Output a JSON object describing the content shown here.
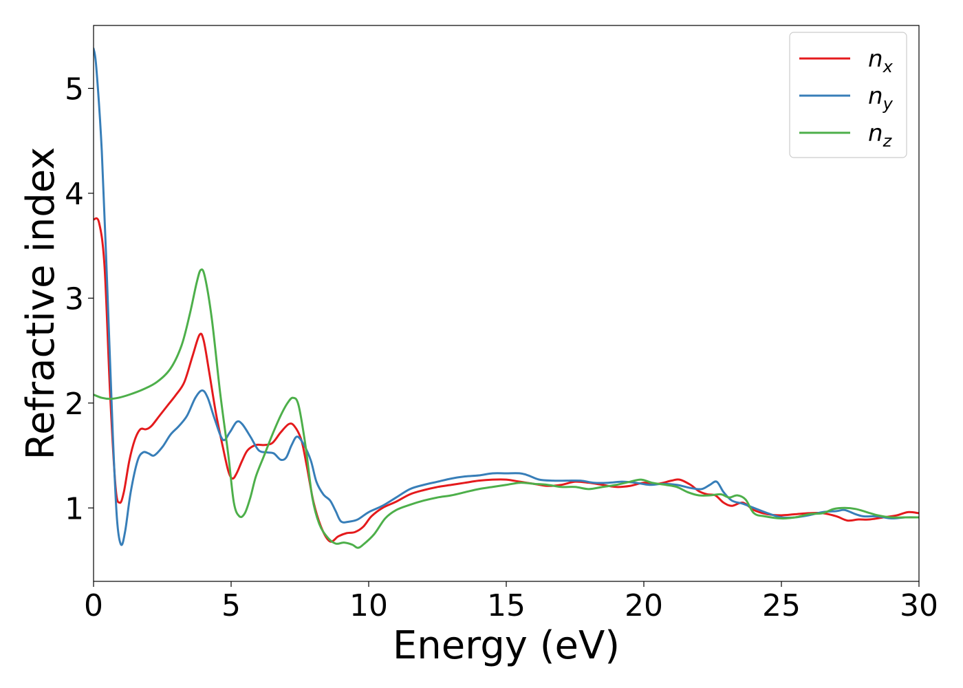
{
  "chart_data": {
    "type": "line",
    "title": "",
    "xlabel": "Energy (eV)",
    "ylabel": "Refractive index",
    "xlim": [
      0,
      30
    ],
    "ylim": [
      0.3,
      5.6
    ],
    "xticks": [
      0,
      5,
      10,
      15,
      20,
      25,
      30
    ],
    "yticks": [
      1,
      2,
      3,
      4,
      5
    ],
    "grid": false,
    "legend": "top-right",
    "series": [
      {
        "name": "n_x",
        "label_base": "n",
        "label_sub": "x",
        "color": "#e41a1c",
        "points": [
          [
            0,
            3.75
          ],
          [
            0.2,
            3.72
          ],
          [
            0.4,
            3.3
          ],
          [
            0.6,
            2.1
          ],
          [
            0.8,
            1.2
          ],
          [
            0.95,
            1.05
          ],
          [
            1.1,
            1.15
          ],
          [
            1.3,
            1.45
          ],
          [
            1.5,
            1.65
          ],
          [
            1.7,
            1.75
          ],
          [
            1.9,
            1.75
          ],
          [
            2.1,
            1.78
          ],
          [
            2.4,
            1.88
          ],
          [
            2.7,
            1.98
          ],
          [
            3.0,
            2.08
          ],
          [
            3.3,
            2.2
          ],
          [
            3.6,
            2.45
          ],
          [
            3.85,
            2.65
          ],
          [
            4.0,
            2.6
          ],
          [
            4.2,
            2.3
          ],
          [
            4.45,
            1.9
          ],
          [
            4.7,
            1.58
          ],
          [
            4.9,
            1.35
          ],
          [
            5.05,
            1.28
          ],
          [
            5.2,
            1.33
          ],
          [
            5.4,
            1.45
          ],
          [
            5.6,
            1.55
          ],
          [
            5.9,
            1.6
          ],
          [
            6.2,
            1.6
          ],
          [
            6.5,
            1.62
          ],
          [
            6.8,
            1.72
          ],
          [
            7.1,
            1.8
          ],
          [
            7.3,
            1.78
          ],
          [
            7.55,
            1.65
          ],
          [
            7.75,
            1.4
          ],
          [
            8.0,
            1.05
          ],
          [
            8.3,
            0.8
          ],
          [
            8.6,
            0.68
          ],
          [
            8.9,
            0.73
          ],
          [
            9.2,
            0.76
          ],
          [
            9.5,
            0.77
          ],
          [
            9.8,
            0.82
          ],
          [
            10.1,
            0.92
          ],
          [
            10.5,
            1.0
          ],
          [
            11.0,
            1.06
          ],
          [
            11.5,
            1.13
          ],
          [
            12.0,
            1.17
          ],
          [
            12.5,
            1.2
          ],
          [
            13.0,
            1.22
          ],
          [
            13.5,
            1.24
          ],
          [
            14.0,
            1.26
          ],
          [
            14.5,
            1.27
          ],
          [
            15.0,
            1.27
          ],
          [
            15.5,
            1.25
          ],
          [
            16.0,
            1.23
          ],
          [
            16.5,
            1.21
          ],
          [
            17.0,
            1.22
          ],
          [
            17.5,
            1.25
          ],
          [
            18.0,
            1.24
          ],
          [
            18.5,
            1.22
          ],
          [
            19.0,
            1.2
          ],
          [
            19.5,
            1.21
          ],
          [
            20.0,
            1.24
          ],
          [
            20.5,
            1.23
          ],
          [
            21.0,
            1.26
          ],
          [
            21.3,
            1.27
          ],
          [
            21.7,
            1.22
          ],
          [
            22.0,
            1.16
          ],
          [
            22.3,
            1.13
          ],
          [
            22.6,
            1.12
          ],
          [
            22.9,
            1.05
          ],
          [
            23.2,
            1.02
          ],
          [
            23.6,
            1.05
          ],
          [
            24.0,
            0.98
          ],
          [
            24.5,
            0.94
          ],
          [
            25.0,
            0.93
          ],
          [
            25.5,
            0.94
          ],
          [
            26.0,
            0.95
          ],
          [
            26.5,
            0.95
          ],
          [
            27.0,
            0.92
          ],
          [
            27.4,
            0.88
          ],
          [
            27.8,
            0.89
          ],
          [
            28.2,
            0.89
          ],
          [
            28.7,
            0.91
          ],
          [
            29.2,
            0.93
          ],
          [
            29.6,
            0.96
          ],
          [
            30.0,
            0.95
          ]
        ]
      },
      {
        "name": "n_y",
        "label_base": "n",
        "label_sub": "y",
        "color": "#377eb8",
        "points": [
          [
            0,
            5.38
          ],
          [
            0.1,
            5.2
          ],
          [
            0.3,
            4.4
          ],
          [
            0.5,
            3.1
          ],
          [
            0.7,
            1.7
          ],
          [
            0.85,
            0.9
          ],
          [
            1.0,
            0.65
          ],
          [
            1.15,
            0.78
          ],
          [
            1.35,
            1.15
          ],
          [
            1.6,
            1.45
          ],
          [
            1.8,
            1.53
          ],
          [
            2.0,
            1.52
          ],
          [
            2.2,
            1.5
          ],
          [
            2.5,
            1.58
          ],
          [
            2.8,
            1.7
          ],
          [
            3.1,
            1.78
          ],
          [
            3.4,
            1.88
          ],
          [
            3.7,
            2.05
          ],
          [
            3.95,
            2.12
          ],
          [
            4.15,
            2.05
          ],
          [
            4.4,
            1.85
          ],
          [
            4.7,
            1.65
          ],
          [
            4.95,
            1.72
          ],
          [
            5.2,
            1.82
          ],
          [
            5.4,
            1.8
          ],
          [
            5.7,
            1.68
          ],
          [
            6.0,
            1.55
          ],
          [
            6.3,
            1.53
          ],
          [
            6.55,
            1.52
          ],
          [
            6.8,
            1.46
          ],
          [
            7.0,
            1.48
          ],
          [
            7.2,
            1.6
          ],
          [
            7.4,
            1.68
          ],
          [
            7.65,
            1.6
          ],
          [
            7.9,
            1.45
          ],
          [
            8.1,
            1.25
          ],
          [
            8.35,
            1.13
          ],
          [
            8.6,
            1.07
          ],
          [
            8.8,
            0.97
          ],
          [
            9.0,
            0.87
          ],
          [
            9.3,
            0.87
          ],
          [
            9.6,
            0.89
          ],
          [
            10.0,
            0.96
          ],
          [
            10.5,
            1.02
          ],
          [
            11.0,
            1.1
          ],
          [
            11.5,
            1.18
          ],
          [
            12.0,
            1.22
          ],
          [
            12.5,
            1.25
          ],
          [
            13.0,
            1.28
          ],
          [
            13.5,
            1.3
          ],
          [
            14.0,
            1.31
          ],
          [
            14.5,
            1.33
          ],
          [
            15.0,
            1.33
          ],
          [
            15.5,
            1.33
          ],
          [
            15.8,
            1.31
          ],
          [
            16.2,
            1.27
          ],
          [
            16.7,
            1.26
          ],
          [
            17.2,
            1.26
          ],
          [
            17.7,
            1.26
          ],
          [
            18.2,
            1.24
          ],
          [
            18.7,
            1.24
          ],
          [
            19.2,
            1.25
          ],
          [
            19.7,
            1.24
          ],
          [
            20.2,
            1.22
          ],
          [
            20.7,
            1.23
          ],
          [
            21.2,
            1.22
          ],
          [
            21.7,
            1.19
          ],
          [
            22.1,
            1.18
          ],
          [
            22.4,
            1.22
          ],
          [
            22.65,
            1.25
          ],
          [
            22.9,
            1.15
          ],
          [
            23.2,
            1.07
          ],
          [
            23.6,
            1.04
          ],
          [
            24.0,
            1.0
          ],
          [
            24.5,
            0.95
          ],
          [
            25.0,
            0.91
          ],
          [
            25.5,
            0.91
          ],
          [
            26.0,
            0.93
          ],
          [
            26.5,
            0.96
          ],
          [
            27.0,
            0.97
          ],
          [
            27.3,
            0.98
          ],
          [
            27.7,
            0.94
          ],
          [
            28.0,
            0.92
          ],
          [
            28.5,
            0.92
          ],
          [
            29.0,
            0.9
          ],
          [
            29.5,
            0.91
          ],
          [
            30.0,
            0.91
          ]
        ]
      },
      {
        "name": "n_z",
        "label_base": "n",
        "label_sub": "z",
        "color": "#4daf4a",
        "points": [
          [
            0,
            2.08
          ],
          [
            0.3,
            2.05
          ],
          [
            0.6,
            2.04
          ],
          [
            0.9,
            2.05
          ],
          [
            1.3,
            2.08
          ],
          [
            1.8,
            2.13
          ],
          [
            2.3,
            2.2
          ],
          [
            2.8,
            2.33
          ],
          [
            3.2,
            2.55
          ],
          [
            3.5,
            2.85
          ],
          [
            3.75,
            3.15
          ],
          [
            3.9,
            3.27
          ],
          [
            4.05,
            3.2
          ],
          [
            4.3,
            2.8
          ],
          [
            4.6,
            2.1
          ],
          [
            4.9,
            1.5
          ],
          [
            5.1,
            1.05
          ],
          [
            5.3,
            0.92
          ],
          [
            5.5,
            0.95
          ],
          [
            5.7,
            1.1
          ],
          [
            5.9,
            1.3
          ],
          [
            6.2,
            1.5
          ],
          [
            6.5,
            1.7
          ],
          [
            6.8,
            1.88
          ],
          [
            7.05,
            2.0
          ],
          [
            7.25,
            2.05
          ],
          [
            7.45,
            1.98
          ],
          [
            7.7,
            1.6
          ],
          [
            7.95,
            1.1
          ],
          [
            8.2,
            0.85
          ],
          [
            8.5,
            0.72
          ],
          [
            8.8,
            0.66
          ],
          [
            9.1,
            0.67
          ],
          [
            9.4,
            0.65
          ],
          [
            9.6,
            0.62
          ],
          [
            9.8,
            0.65
          ],
          [
            10.2,
            0.75
          ],
          [
            10.6,
            0.9
          ],
          [
            11.0,
            0.98
          ],
          [
            11.5,
            1.03
          ],
          [
            12.0,
            1.07
          ],
          [
            12.5,
            1.1
          ],
          [
            13.0,
            1.12
          ],
          [
            13.5,
            1.15
          ],
          [
            14.0,
            1.18
          ],
          [
            14.5,
            1.2
          ],
          [
            15.0,
            1.22
          ],
          [
            15.5,
            1.24
          ],
          [
            16.0,
            1.23
          ],
          [
            16.5,
            1.22
          ],
          [
            17.0,
            1.2
          ],
          [
            17.5,
            1.2
          ],
          [
            18.0,
            1.18
          ],
          [
            18.5,
            1.2
          ],
          [
            19.0,
            1.22
          ],
          [
            19.5,
            1.25
          ],
          [
            19.9,
            1.27
          ],
          [
            20.3,
            1.24
          ],
          [
            20.8,
            1.22
          ],
          [
            21.2,
            1.2
          ],
          [
            21.6,
            1.15
          ],
          [
            22.0,
            1.12
          ],
          [
            22.4,
            1.12
          ],
          [
            22.8,
            1.13
          ],
          [
            23.1,
            1.1
          ],
          [
            23.4,
            1.12
          ],
          [
            23.7,
            1.08
          ],
          [
            24.0,
            0.95
          ],
          [
            24.4,
            0.92
          ],
          [
            25.0,
            0.9
          ],
          [
            25.5,
            0.91
          ],
          [
            26.0,
            0.94
          ],
          [
            26.5,
            0.95
          ],
          [
            26.9,
            0.99
          ],
          [
            27.3,
            1.0
          ],
          [
            27.7,
            0.99
          ],
          [
            28.1,
            0.96
          ],
          [
            28.5,
            0.93
          ],
          [
            29.0,
            0.91
          ],
          [
            29.5,
            0.91
          ],
          [
            30.0,
            0.91
          ]
        ]
      }
    ]
  }
}
